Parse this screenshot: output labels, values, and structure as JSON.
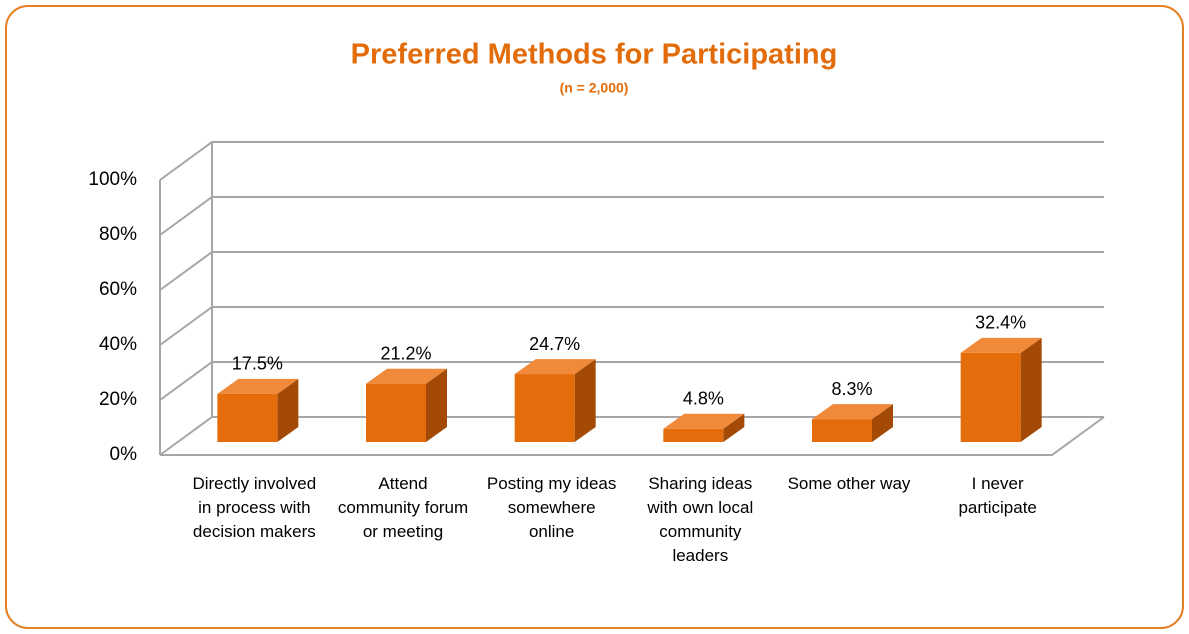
{
  "chart_data": {
    "type": "bar3d",
    "title": "Preferred Methods for Participating",
    "subtitle": "(n = 2,000)",
    "categories": [
      "Directly involved in process with decision makers",
      "Attend community forum or meeting",
      "Posting my ideas somewhere online",
      "Sharing ideas with own local community leaders",
      "Some other way",
      "I never participate"
    ],
    "values": [
      17.5,
      21.2,
      24.7,
      4.8,
      8.3,
      32.4
    ],
    "value_labels": [
      "17.5%",
      "21.2%",
      "24.7%",
      "4.8%",
      "8.3%",
      "32.4%"
    ],
    "color": "#e46c0a",
    "ylim": [
      0,
      100
    ],
    "yticks": [
      {
        "value": 0,
        "label": "0%"
      },
      {
        "value": 20,
        "label": "20%"
      },
      {
        "value": 40,
        "label": "40%"
      },
      {
        "value": 60,
        "label": "60%"
      },
      {
        "value": 80,
        "label": "80%"
      },
      {
        "value": 100,
        "label": "100%"
      }
    ],
    "grid": true
  }
}
